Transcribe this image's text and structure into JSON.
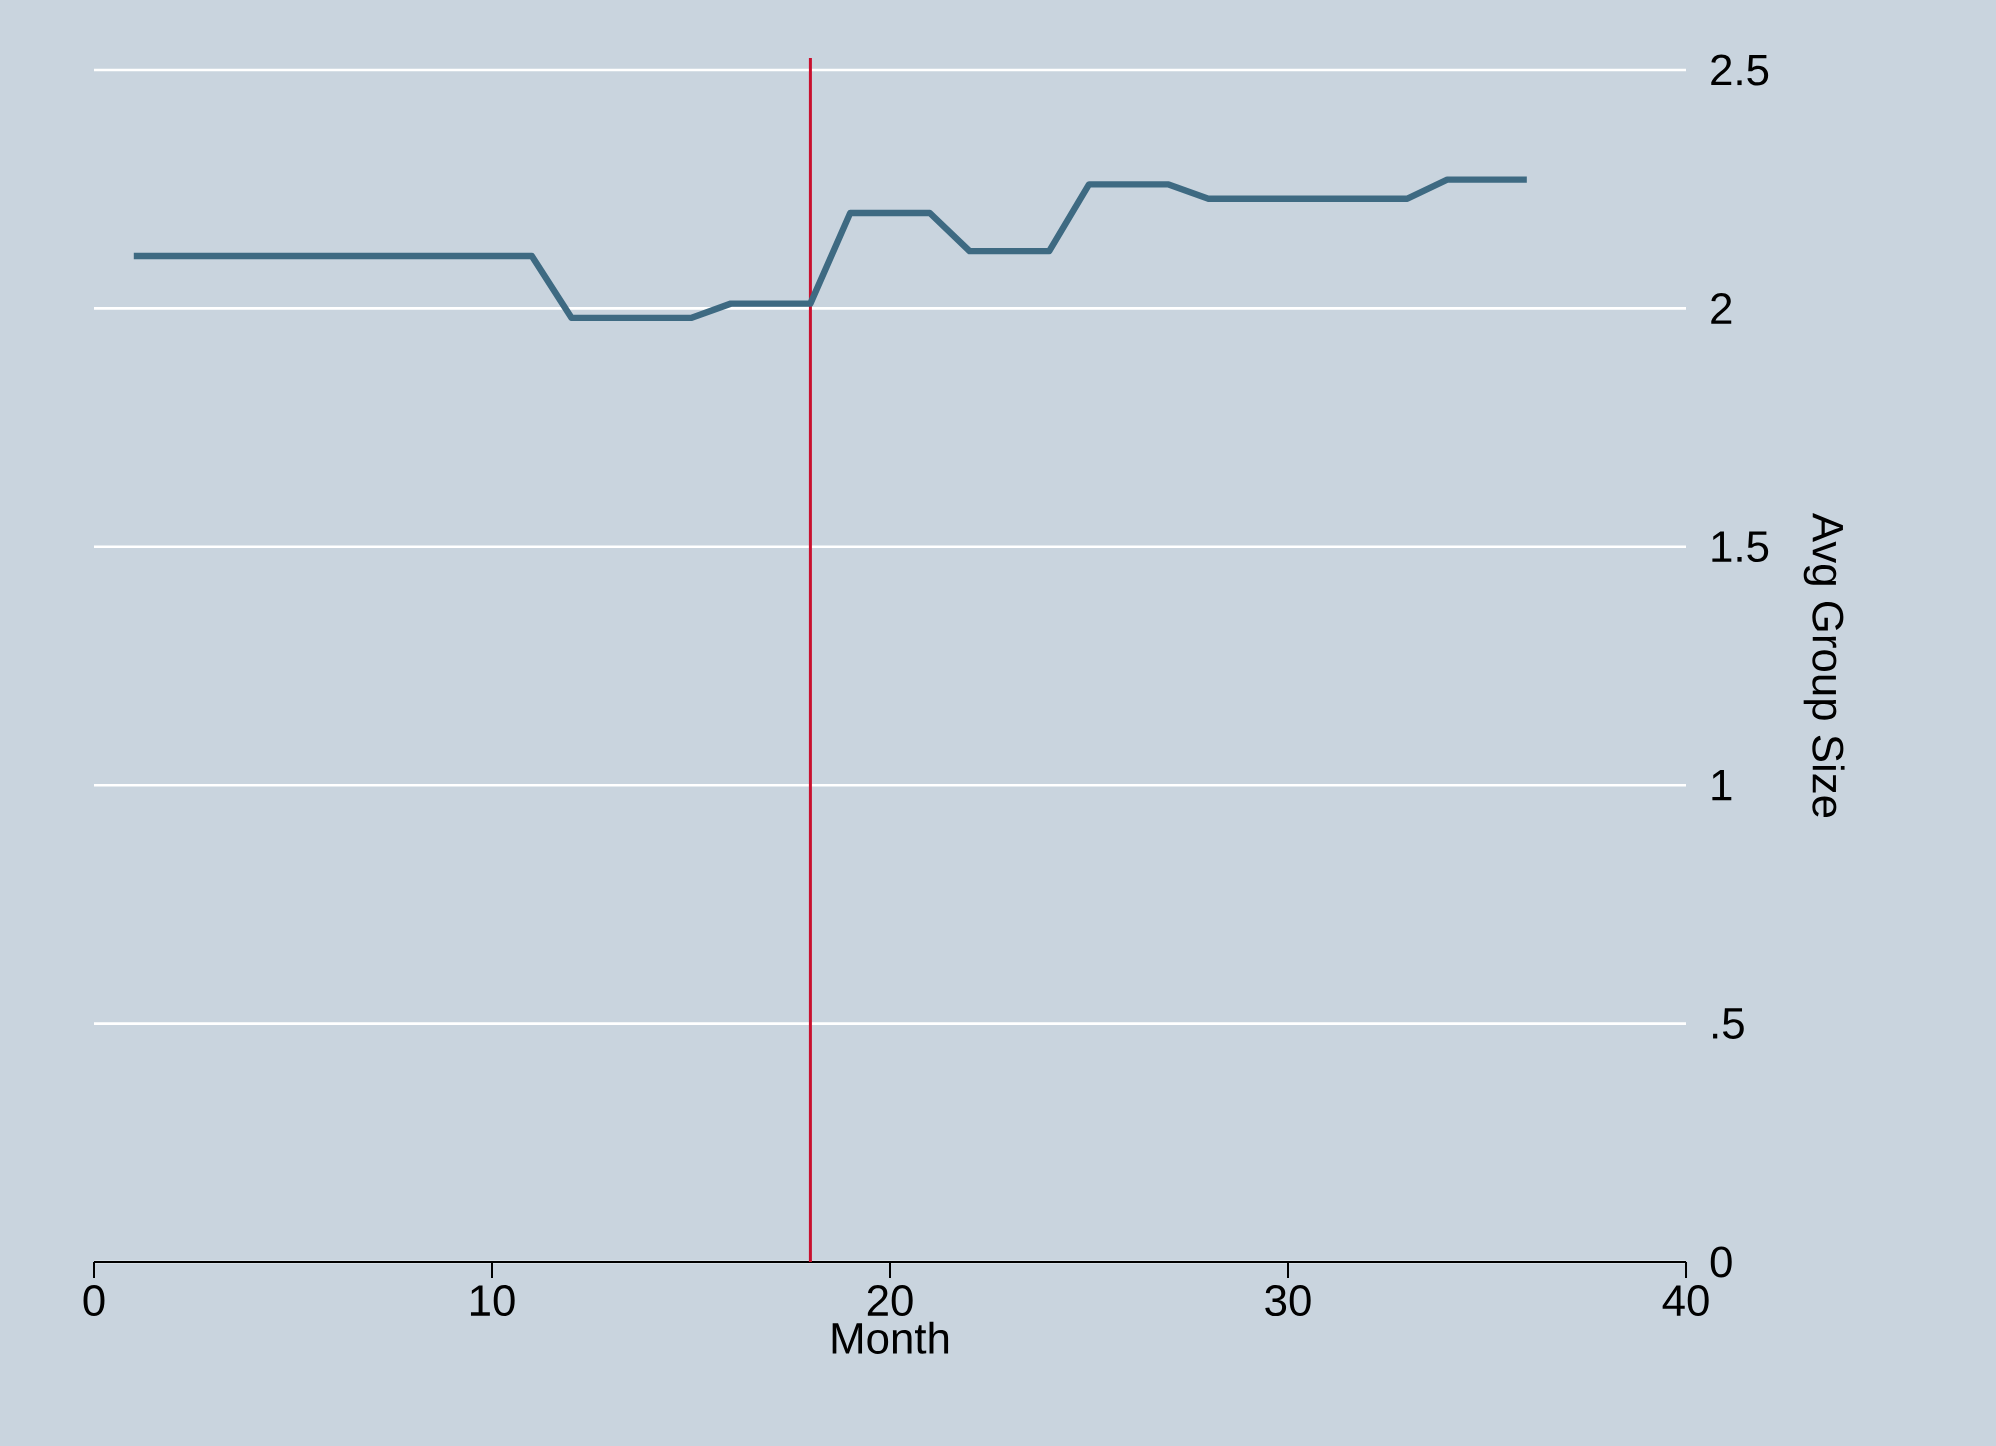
{
  "chart_data": {
    "type": "line",
    "xlabel": "Month",
    "ylabel": "Avg Group Size",
    "x": [
      1,
      11,
      12,
      15,
      16,
      18,
      19,
      21,
      22,
      24,
      25,
      27,
      28,
      33,
      34,
      36
    ],
    "series": [
      {
        "color": "#3e6a82",
        "values": [
          2.11,
          2.11,
          1.98,
          1.98,
          2.01,
          2.01,
          2.2,
          2.2,
          2.12,
          2.12,
          2.26,
          2.26,
          2.23,
          2.23,
          2.27,
          2.27
        ]
      }
    ],
    "xlim": [
      0,
      40
    ],
    "xticks": [
      0,
      10,
      20,
      30,
      40
    ],
    "ylim": [
      0,
      2.5
    ],
    "yticks": [
      0,
      {
        "value": 0.5,
        "label": ".5"
      },
      1,
      1.5,
      2,
      2.5
    ],
    "grid": "y",
    "ref_lines": [
      {
        "axis": "x",
        "value": 18,
        "color": "#c8102e"
      }
    ]
  }
}
